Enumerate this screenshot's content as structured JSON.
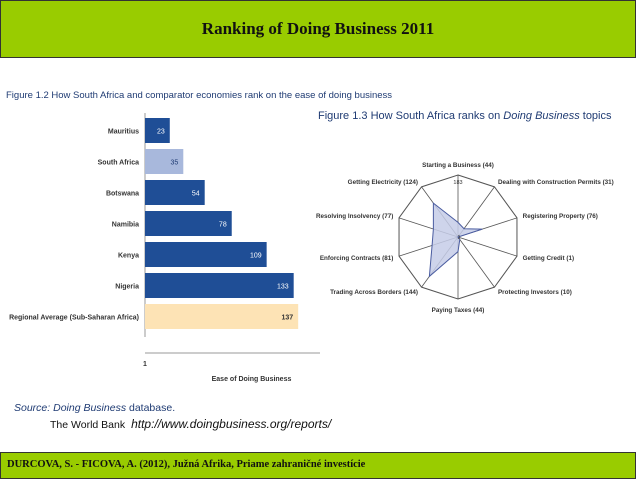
{
  "header": {
    "title": "Ranking of Doing Business 2011"
  },
  "footer": {
    "citation": "DURCOVA, S. - FICOVA, A. (2012),  Južná Afrika, Priame zahraničné investície"
  },
  "source": {
    "label": "Source:",
    "text": "Doing Business",
    "rest": " database.",
    "org": "The World Bank",
    "url": "http://www.doingbusiness.org/reports/"
  },
  "chart_data": [
    {
      "type": "bar",
      "orientation": "horizontal",
      "title": "Figure 1.2 How South Africa and comparator economies rank on the ease of doing business",
      "categories": [
        "Mauritius",
        "South Africa",
        "Botswana",
        "Namibia",
        "Kenya",
        "Nigeria",
        "Regional Average (Sub-Saharan Africa)"
      ],
      "values": [
        23,
        35,
        54,
        78,
        109,
        133,
        137
      ],
      "xlabel": "Ease of Doing Business",
      "xlim": [
        1,
        183
      ],
      "ticks": [
        "1",
        "183"
      ],
      "colors": {
        "default": "#1f4e96",
        "highlight": "#a8b8dc",
        "average": "#fde3b5"
      },
      "highlight_index": 1,
      "average_index": 6
    },
    {
      "type": "radar",
      "title_prefix": "Figure 1.3 How South Africa ranks on ",
      "title_italic": "Doing Business",
      "title_suffix": " topics",
      "axes": [
        "Starting a Business (44)",
        "Dealing with Construction Permits (31)",
        "Registering Property (76)",
        "Getting Credit (1)",
        "Protecting Investors (10)",
        "Paying Taxes (44)",
        "Trading Across Borders (144)",
        "Enforcing Contracts (81)",
        "Resolving Insolvency (77)",
        "Getting Electricity (124)"
      ],
      "values": [
        44,
        31,
        76,
        1,
        10,
        44,
        144,
        81,
        77,
        124
      ],
      "range": [
        1,
        183
      ],
      "scale_labels": [
        "183",
        "1"
      ],
      "fill": "#c5cde8",
      "stroke": "#4a5ca0"
    }
  ]
}
